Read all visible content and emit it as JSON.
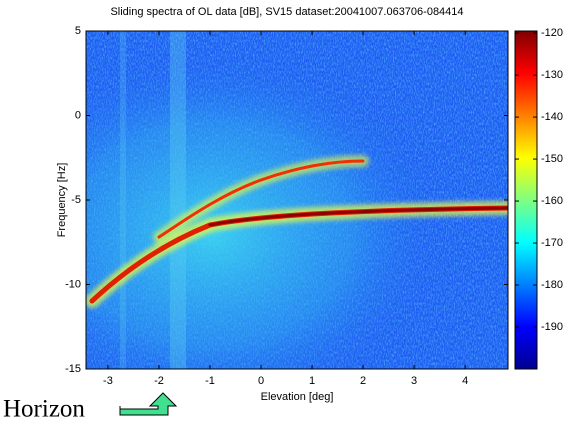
{
  "chart_data": {
    "type": "heatmap",
    "title": "Sliding spectra of OL data [dB], SV15 dataset:20041007.063706-084414",
    "xlabel": "Elevation [deg]",
    "ylabel": "Frequency [Hz]",
    "xlim": [
      -3.43,
      4.84
    ],
    "xticks": [
      -3,
      -2,
      -1,
      0,
      1,
      2,
      3,
      4
    ],
    "ylim": [
      -15,
      5
    ],
    "yticks": [
      -15,
      -10,
      -5,
      0,
      5
    ],
    "clim": [
      -200,
      -119.5
    ],
    "cticks": [
      -190,
      -180,
      -170,
      -160,
      -150,
      -140,
      -130,
      -120
    ],
    "colormap": "jet",
    "annotation": "Horizon"
  }
}
